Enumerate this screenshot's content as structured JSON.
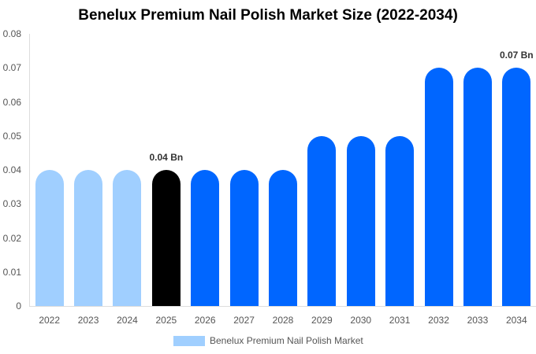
{
  "chart_data": {
    "type": "bar",
    "title": "Benelux Premium Nail Polish Market Size (2022-2034)",
    "xlabel": "",
    "ylabel": "",
    "ylim": [
      0,
      0.08
    ],
    "yticks": [
      "0",
      "0.01",
      "0.02",
      "0.03",
      "0.04",
      "0.05",
      "0.06",
      "0.07",
      "0.08"
    ],
    "categories": [
      "2022",
      "2023",
      "2024",
      "2025",
      "2026",
      "2027",
      "2028",
      "2029",
      "2030",
      "2031",
      "2032",
      "2033",
      "2034"
    ],
    "series": [
      {
        "name": "Benelux Premium Nail Polish Market",
        "values": [
          0.04,
          0.04,
          0.04,
          0.04,
          0.04,
          0.04,
          0.04,
          0.05,
          0.05,
          0.05,
          0.07,
          0.07,
          0.07
        ],
        "colors": [
          "#a0cfff",
          "#a0cfff",
          "#a0cfff",
          "#000000",
          "#0066ff",
          "#0066ff",
          "#0066ff",
          "#0066ff",
          "#0066ff",
          "#0066ff",
          "#0066ff",
          "#0066ff",
          "#0066ff"
        ]
      }
    ],
    "annotations": [
      {
        "category": "2025",
        "label": "0.04 Bn"
      },
      {
        "category": "2034",
        "label": "0.07 Bn"
      }
    ],
    "grid": false,
    "legend_position": "bottom"
  },
  "legend": {
    "label": "Benelux Premium Nail Polish Market",
    "color": "#a0cfff"
  }
}
